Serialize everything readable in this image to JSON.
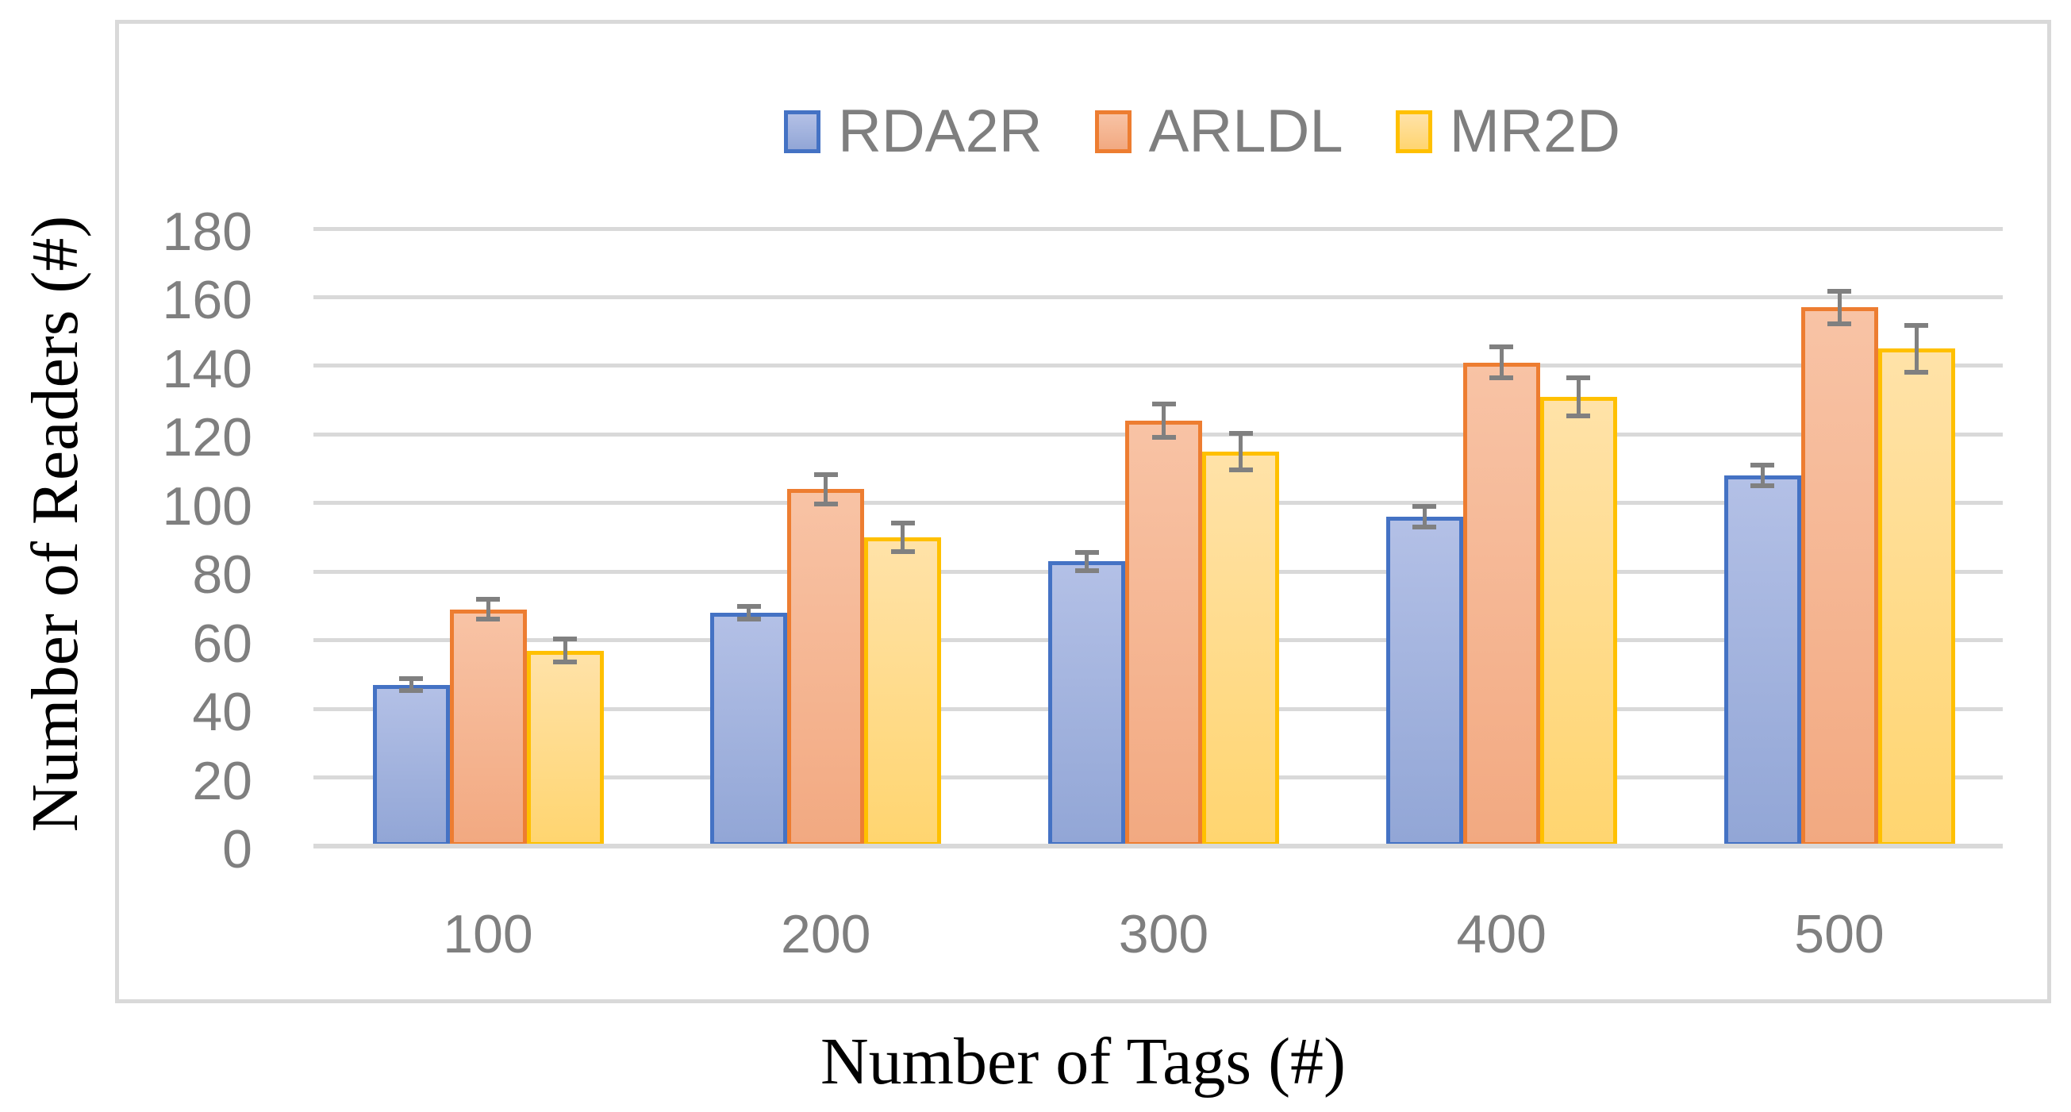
{
  "chart_data": {
    "type": "bar",
    "title": "",
    "xlabel": "Number of Tags (#)",
    "ylabel": "Number of Readers (#)",
    "categories": [
      "100",
      "200",
      "300",
      "400",
      "500"
    ],
    "series": [
      {
        "name": "RDA2R",
        "values": [
          47,
          68,
          83,
          96,
          108
        ],
        "errors": [
          2.4,
          2.6,
          3.4,
          3.7,
          3.7
        ],
        "border_color": "#4472C4",
        "fill_top": "#B3C0E6",
        "fill_bottom": "#92A6D6"
      },
      {
        "name": "ARLDL",
        "values": [
          69,
          104,
          124,
          141,
          157
        ],
        "errors": [
          3.6,
          4.9,
          5.5,
          5.2,
          5.5
        ],
        "border_color": "#ED7D31",
        "fill_top": "#F8C3A5",
        "fill_bottom": "#F2A981"
      },
      {
        "name": "MR2D",
        "values": [
          57,
          90,
          115,
          131,
          145
        ],
        "errors": [
          4.0,
          4.8,
          6.0,
          6.2,
          7.5
        ],
        "border_color": "#FFC000",
        "fill_top": "#FFE2A8",
        "fill_bottom": "#FFD570"
      }
    ],
    "ylim": [
      0,
      180
    ],
    "ytick_step": 20,
    "yticks": [
      "0",
      "20",
      "40",
      "60",
      "80",
      "100",
      "120",
      "140",
      "160",
      "180"
    ],
    "grid": true,
    "legend_position": "top-center",
    "colors": {
      "gridline": "#D9D9D9",
      "chart_border": "#D9D9D9",
      "axis_text": "#7F7F7F",
      "error_bar": "#808080",
      "title_text": "#000000",
      "background": "#FFFFFF"
    }
  }
}
